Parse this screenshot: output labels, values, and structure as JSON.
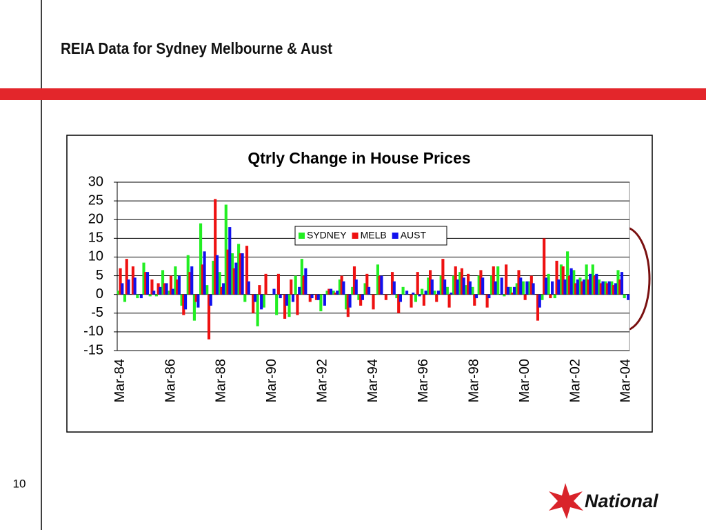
{
  "slide": {
    "title": "REIA Data for Sydney Melbourne & Aust",
    "page_number": "10",
    "logo": "National"
  },
  "chart_data": {
    "type": "bar",
    "title": "Qtrly Change in House Prices",
    "categories": [
      "Mar-84",
      null,
      null,
      null,
      null,
      null,
      null,
      null,
      "Mar-86",
      null,
      null,
      null,
      null,
      null,
      null,
      null,
      "Mar-88",
      null,
      null,
      null,
      null,
      null,
      null,
      null,
      "Mar-90",
      null,
      null,
      null,
      null,
      null,
      null,
      null,
      "Mar-92",
      null,
      null,
      null,
      null,
      null,
      null,
      null,
      "Mar-94",
      null,
      null,
      null,
      null,
      null,
      null,
      null,
      "Mar-96",
      null,
      null,
      null,
      null,
      null,
      null,
      null,
      "Mar-98",
      null,
      null,
      null,
      null,
      null,
      null,
      null,
      "Mar-00",
      null,
      null,
      null,
      null,
      null,
      null,
      null,
      "Mar-02",
      null,
      null,
      null,
      null,
      null,
      null,
      null,
      "Mar-04"
    ],
    "series": [
      {
        "name": "SYDNEY",
        "color": "#22ee22",
        "values": [
          1,
          -2,
          0,
          -1,
          8.5,
          -0.5,
          -0.5,
          6.5,
          1,
          7.5,
          -3,
          10.5,
          -7,
          19,
          2.5,
          9,
          6,
          24,
          11,
          13.5,
          -2,
          0,
          -8.5,
          -3.5,
          0,
          -5.5,
          0,
          -6,
          5,
          9.5,
          0,
          0,
          -4.5,
          1,
          1,
          4,
          -4,
          2,
          -1.5,
          3,
          0,
          8,
          0,
          0,
          -1,
          2,
          0,
          -2,
          1.5,
          4.5,
          1,
          5,
          2,
          5,
          6,
          2.5,
          2,
          5,
          0,
          5,
          7.5,
          -0.5,
          2,
          3,
          3.5,
          3.5,
          0,
          -1.5,
          5.5,
          -1,
          8,
          11.5,
          6.5,
          4.5,
          8,
          8,
          4,
          3.5,
          3.5,
          6.5,
          -1
        ]
      },
      {
        "name": "MELB",
        "color": "#ee1111",
        "values": [
          7,
          9.5,
          7.5,
          0,
          6,
          4,
          3,
          3,
          5,
          4,
          -5.5,
          6,
          -2,
          8,
          -12,
          25.5,
          2,
          12,
          7,
          11,
          13,
          -5,
          2.5,
          5.5,
          0,
          5.5,
          -6.5,
          4,
          -5.5,
          5,
          -2,
          -1.5,
          0,
          1.5,
          0.5,
          5,
          -6,
          7.5,
          -3,
          5.5,
          -4,
          5,
          -1.5,
          6,
          -5,
          0,
          -3.5,
          6,
          -3,
          6.5,
          -2,
          9.5,
          -3.5,
          7.5,
          7,
          5.5,
          -3,
          6.5,
          -3.5,
          7.5,
          0,
          8,
          0.5,
          6.5,
          -1.5,
          5,
          -7,
          15,
          -1,
          9,
          7.5,
          5,
          3,
          3.5,
          4,
          5,
          3,
          3,
          2.5,
          4,
          0
        ]
      },
      {
        "name": "AUST",
        "color": "#1111ee",
        "values": [
          3,
          4,
          4.5,
          -1,
          6,
          1,
          2,
          3,
          1.5,
          5,
          -4,
          7.5,
          -3.5,
          11.5,
          -3,
          10.5,
          3,
          18,
          8.5,
          11,
          3.5,
          -2,
          -4,
          0,
          1.5,
          -1,
          -3,
          -2,
          2,
          7,
          -1,
          -1.5,
          -3,
          1.5,
          1,
          3.5,
          -3.5,
          4,
          -1.5,
          2,
          0,
          5,
          0,
          3.5,
          -2,
          1,
          0.5,
          -0.5,
          1,
          4,
          1,
          4,
          0.5,
          4,
          4.5,
          3.5,
          -1,
          4.5,
          -1,
          3.5,
          4.5,
          2,
          2,
          4.5,
          3.5,
          3,
          -3.5,
          4.5,
          3.5,
          4,
          4,
          7,
          4,
          4,
          5.5,
          5.5,
          3.5,
          3.5,
          3,
          6,
          -1.5
        ]
      }
    ],
    "ylim": [
      -15,
      30
    ],
    "yticks": [
      -15,
      -10,
      -5,
      0,
      5,
      10,
      15,
      20,
      25,
      30
    ],
    "grid": true
  }
}
